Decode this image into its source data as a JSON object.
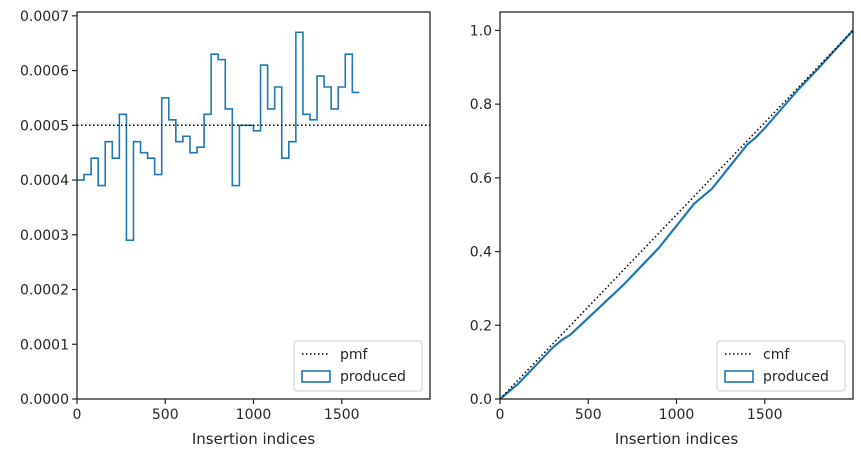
{
  "colors": {
    "series": "#1f77b4",
    "reference": "#000000",
    "axes": "#262626",
    "legend_frame": "#cccccc"
  },
  "chart_data": [
    {
      "type": "line",
      "subtype": "step-histogram",
      "title": "",
      "xlabel": "Insertion indices",
      "ylabel": "",
      "xlim": [
        0,
        2000
      ],
      "ylim": [
        0,
        0.000707
      ],
      "xticks": [
        0,
        500,
        1000,
        1500
      ],
      "xtick_labels": [
        "0",
        "500",
        "1000",
        "1500"
      ],
      "yticks": [
        0,
        0.0001,
        0.0002,
        0.0003,
        0.0004,
        0.0005,
        0.0006,
        0.0007
      ],
      "ytick_labels": [
        "0.0000",
        "0.0001",
        "0.0002",
        "0.0003",
        "0.0004",
        "0.0005",
        "0.0006",
        "0.0007"
      ],
      "grid": false,
      "legend_position": "lower right",
      "bin_width": 40,
      "series": [
        {
          "name": "produced",
          "style": "step",
          "bin_start": 0,
          "values": [
            0.0004,
            0.00041,
            0.00044,
            0.00039,
            0.00047,
            0.00044,
            0.00052,
            0.00029,
            0.00047,
            0.00045,
            0.00044,
            0.00041,
            0.00055,
            0.00051,
            0.00047,
            0.00048,
            0.00045,
            0.00046,
            0.00052,
            0.00063,
            0.00062,
            0.00053,
            0.00039,
            0.0005,
            0.0005,
            0.00049,
            0.00061,
            0.00053,
            0.00057,
            0.00044,
            0.00047,
            0.00067,
            0.00052,
            0.00051,
            0.00059,
            0.00057,
            0.00053,
            0.00057,
            0.00063,
            0.00056
          ]
        },
        {
          "name": "pmf",
          "style": "dotted",
          "x": [
            0,
            2000
          ],
          "y": [
            0.0005,
            0.0005
          ]
        }
      ]
    },
    {
      "type": "line",
      "title": "",
      "xlabel": "Insertion indices",
      "ylabel": "",
      "xlim": [
        0,
        2000
      ],
      "ylim": [
        0,
        1.05
      ],
      "xticks": [
        0,
        500,
        1000,
        1500
      ],
      "xtick_labels": [
        "0",
        "500",
        "1000",
        "1500"
      ],
      "yticks": [
        0,
        0.2,
        0.4,
        0.6,
        0.8,
        1.0
      ],
      "ytick_labels": [
        "0.0",
        "0.2",
        "0.4",
        "0.6",
        "0.8",
        "1.0"
      ],
      "grid": false,
      "legend_position": "lower right",
      "series": [
        {
          "name": "produced",
          "style": "solid",
          "x": [
            0,
            100,
            200,
            300,
            350,
            400,
            500,
            600,
            700,
            800,
            900,
            1000,
            1100,
            1200,
            1300,
            1400,
            1450,
            1500,
            1600,
            1700,
            1800,
            1900,
            2000
          ],
          "y": [
            0,
            0.04,
            0.09,
            0.14,
            0.16,
            0.175,
            0.22,
            0.265,
            0.31,
            0.36,
            0.41,
            0.47,
            0.53,
            0.57,
            0.63,
            0.69,
            0.71,
            0.735,
            0.79,
            0.845,
            0.895,
            0.948,
            1.0
          ]
        },
        {
          "name": "cmf",
          "style": "dotted",
          "x": [
            0,
            2000
          ],
          "y": [
            0,
            1.0
          ]
        }
      ]
    }
  ]
}
